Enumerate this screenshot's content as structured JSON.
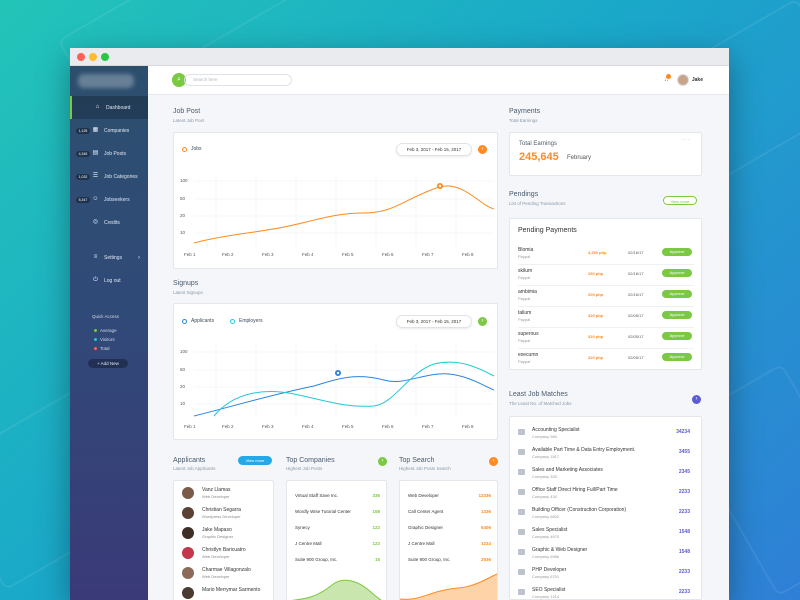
{
  "colors": {
    "accent_green": "#7bc843",
    "accent_orange": "#ff8a1f",
    "accent_blue": "#2c83dc",
    "accent_cyan": "#24c9d8",
    "accent_purple": "#5b5bd6"
  },
  "window_dots": [
    "#ff5f57",
    "#ffbd2e",
    "#28c940"
  ],
  "sidebar": {
    "items": [
      {
        "label": "Dashboard",
        "badge": "",
        "icon": "home-icon",
        "active": true
      },
      {
        "label": "Companies",
        "badge": "1,125",
        "icon": "building-icon"
      },
      {
        "label": "Job Posts",
        "badge": "4,345",
        "icon": "document-icon"
      },
      {
        "label": "Job Categories",
        "badge": "1,032",
        "icon": "categories-icon"
      },
      {
        "label": "Jobseekers",
        "badge": "5,347",
        "icon": "users-icon"
      },
      {
        "label": "Credits",
        "badge": "",
        "icon": "coins-icon"
      }
    ],
    "settings_label": "Settings",
    "logout_label": "Log out",
    "quick_access_title": "Quick Access",
    "quick_access": [
      {
        "label": "Average",
        "color": "#7bc843"
      },
      {
        "label": "Visitors",
        "color": "#24c9d8"
      },
      {
        "label": "Total",
        "color": "#ff5f57"
      }
    ],
    "add_new_label": "+ Add New"
  },
  "topbar": {
    "search_placeholder": "Search here",
    "user_name": "Jake"
  },
  "job_post": {
    "title": "Job Post",
    "subtitle": "Latest Job Post",
    "legend": "Jobs",
    "date_range": "Feb 3, 2017 - Feb 15, 2017",
    "y_ticks": [
      "100",
      "50",
      "20",
      "10"
    ],
    "x_ticks": [
      "Feb 1",
      "Feb 2",
      "Feb 3",
      "Feb 4",
      "Feb 5",
      "Feb 6",
      "Feb 7",
      "Feb 8"
    ]
  },
  "signups": {
    "title": "Signups",
    "subtitle": "Latest Signups",
    "legend_a": "Applicants",
    "legend_b": "Employers",
    "date_range": "Feb 3, 2017 - Feb 15, 2017",
    "y_ticks": [
      "100",
      "50",
      "20",
      "10"
    ],
    "x_ticks": [
      "Feb 1",
      "Feb 2",
      "Feb 3",
      "Feb 4",
      "Feb 5",
      "Feb 6",
      "Feb 7",
      "Feb 8"
    ]
  },
  "applicants": {
    "title": "Applicants",
    "subtitle": "Latest Job Applicants",
    "view_more": "View more",
    "items": [
      {
        "name": "Vanz Llamas",
        "role": "Web Developer"
      },
      {
        "name": "Christian Segarra",
        "role": "Wordpress Developer"
      },
      {
        "name": "Jake Mapaso",
        "role": "Graphic Designer"
      },
      {
        "name": "Christlyn Baricuatro",
        "role": "Web Developer"
      },
      {
        "name": "Charmae Villagonzalo",
        "role": "Web Developer"
      },
      {
        "name": "Mario Merrymar Sarmento",
        "role": ""
      }
    ]
  },
  "top_companies": {
    "title": "Top Companies",
    "subtitle": "Highest Job Posts",
    "items": [
      {
        "name": "Virtual Staff Save Inc.",
        "value": "336"
      },
      {
        "name": "Wordly Wise Tutorial Center",
        "value": "158"
      },
      {
        "name": "Synecy",
        "value": "122"
      },
      {
        "name": "J Centre Mall",
        "value": "123"
      },
      {
        "name": "Suite 900 Group, Inc.",
        "value": "15"
      }
    ]
  },
  "top_search": {
    "title": "Top Search",
    "subtitle": "Highest Job Posts Search",
    "items": [
      {
        "name": "Web Developer",
        "value": "12336"
      },
      {
        "name": "Call Center Agent",
        "value": "1336"
      },
      {
        "name": "Graphic Designer",
        "value": "5406"
      },
      {
        "name": "J Centre Mall",
        "value": "1234"
      },
      {
        "name": "Suite 900 Group, Inc.",
        "value": "2536"
      }
    ]
  },
  "payments": {
    "title": "Payments",
    "subtitle": "Total Earnings",
    "card_label": "Total Earnings",
    "amount": "245,645",
    "month": "February"
  },
  "pendings": {
    "title": "Pendings",
    "subtitle": "List of Pending Transactions",
    "view_more": "View more",
    "card_title": "Pending Payments",
    "items": [
      {
        "name": "Blomia",
        "via": "Paypal",
        "amount": "4,250 php",
        "date": "02/16/17",
        "action": "Approve"
      },
      {
        "name": "skilum",
        "via": "Paypal",
        "amount": "250 php",
        "date": "02/16/17",
        "action": "Approve"
      },
      {
        "name": "ambimia",
        "via": "Paypal",
        "amount": "200 php",
        "date": "02/16/17",
        "action": "Approve"
      },
      {
        "name": "talium",
        "via": "Paypal",
        "amount": "320 php",
        "date": "02/05/17",
        "action": "Approve"
      },
      {
        "name": "superous",
        "via": "Paypal",
        "amount": "320 php",
        "date": "02/05/17",
        "action": "Approve"
      },
      {
        "name": "execumn",
        "via": "Paypal",
        "amount": "320 php",
        "date": "02/05/17",
        "action": "Approve"
      }
    ]
  },
  "matches": {
    "title": "Least Job Matches",
    "subtitle": "The Least No. of Matched Jobs",
    "items": [
      {
        "title": "Accounting Specialist",
        "company": "Company 983",
        "count": "34234"
      },
      {
        "title": "Available Part Time & Data Entry Employment.",
        "company": "Company 1817",
        "count": "3455"
      },
      {
        "title": "Sales and Marketing Associates",
        "company": "Company 333",
        "count": "2345"
      },
      {
        "title": "Office Staff Direct Hiring Full/Part Time",
        "company": "Company 434",
        "count": "2233"
      },
      {
        "title": "Building Officer (Construction Corporation)",
        "company": "Company 6602",
        "count": "2233"
      },
      {
        "title": "Sales Specialist",
        "company": "Company 4670",
        "count": "1548"
      },
      {
        "title": "Graphic & Web Designer",
        "company": "Company 6986",
        "count": "1548"
      },
      {
        "title": "PHP Developer",
        "company": "Company 6701",
        "count": "2233"
      },
      {
        "title": "SEO Specialist",
        "company": "Company 1214",
        "count": "2233"
      }
    ]
  }
}
